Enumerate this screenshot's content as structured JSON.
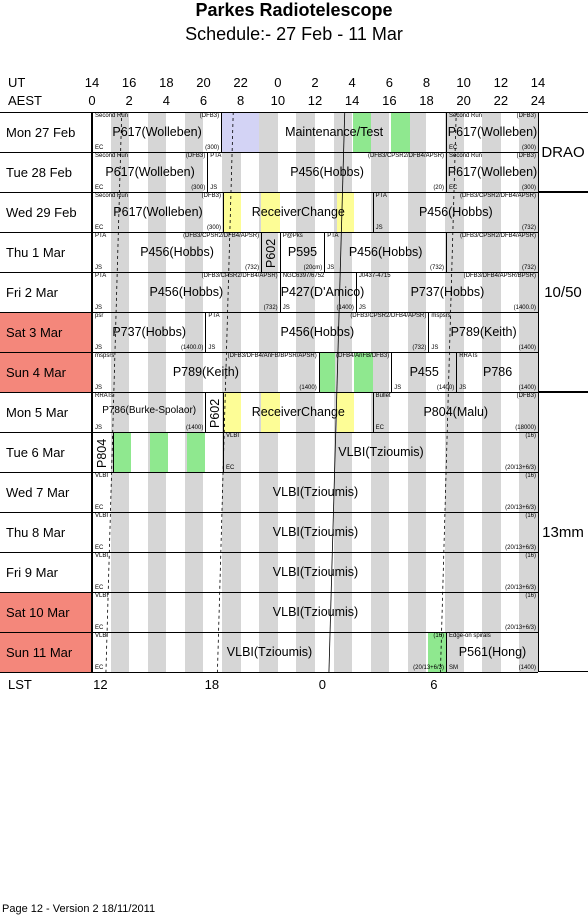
{
  "title": "Parkes Radiotelescope",
  "subtitle": "Schedule:- 27 Feb - 11 Mar",
  "axis": {
    "ut_label": "UT",
    "aest_label": "AEST",
    "lst_label": "LST",
    "ut_ticks": [
      "14",
      "16",
      "18",
      "20",
      "22",
      "0",
      "2",
      "4",
      "6",
      "8",
      "10",
      "12",
      "14"
    ],
    "aest_ticks": [
      "0",
      "2",
      "4",
      "6",
      "8",
      "10",
      "12",
      "14",
      "16",
      "18",
      "20",
      "22",
      "24"
    ],
    "lst_ticks": [
      "12",
      "18",
      "0",
      "6"
    ]
  },
  "colors": {
    "weekend": "#f4877b",
    "grey": "#d6d6d6",
    "maintenance": "#d3d3f5",
    "receiver": "#fdfd96",
    "green": "#8fe88f"
  },
  "receivers": [
    "DRAO",
    "10/50",
    "13mm"
  ],
  "days": [
    {
      "label": "Mon   27 Feb",
      "weekend": false,
      "blocks": [
        {
          "x0": 0,
          "x1": 6.95,
          "name": "P617(Wolleben)",
          "tl": "Second Run",
          "tr": "(DFB3)",
          "bl": "EC",
          "br": "(300)"
        },
        {
          "x0": 6.95,
          "x1": 19.05,
          "name": "Maintenance/Test"
        },
        {
          "x0": 19.05,
          "x1": 24,
          "name": "P617(Wolleben)",
          "tl": "Second Run",
          "tr": "(DFB3)",
          "bl": "EC",
          "br": "(300)"
        }
      ],
      "bg": [
        {
          "x0": 7,
          "x1": 9,
          "c": "maintenance"
        },
        {
          "x0": 14.05,
          "x1": 15,
          "c": "green"
        },
        {
          "x0": 16.1,
          "x1": 17.1,
          "c": "green"
        }
      ]
    },
    {
      "label": "Tue   28 Feb",
      "weekend": false,
      "blocks": [
        {
          "x0": 0,
          "x1": 6.2,
          "name": "P617(Wolleben)",
          "tl": "Second Run",
          "tr": "(DFB3)",
          "bl": "EC",
          "br": "(300)"
        },
        {
          "x0": 6.2,
          "x1": 19.05,
          "name": "P456(Hobbs)",
          "tl": "PTA",
          "tr": "(DFB3/CPSR2/DFB4/APSR)",
          "bl": "JS",
          "br": "(20)"
        },
        {
          "x0": 19.05,
          "x1": 24,
          "name": "P617(Wolleben)",
          "tl": "Second Run",
          "tr": "(DFB3)",
          "bl": "EC",
          "br": "(300)"
        }
      ],
      "bg": []
    },
    {
      "label": "Wed   29 Feb",
      "weekend": false,
      "blocks": [
        {
          "x0": 0,
          "x1": 7.05,
          "name": "P617(Wolleben)",
          "tl": "Second Run",
          "tr": "(DFB3)",
          "bl": "EC",
          "br": "(300)"
        },
        {
          "x0": 7.05,
          "x1": 15.1,
          "name": "ReceiverChange"
        },
        {
          "x0": 15.1,
          "x1": 24,
          "name": "P456(Hobbs)",
          "tl": "PTA",
          "tr": "(DFB3/CPSR2/DFB4/APSR)",
          "bl": "JS",
          "br": "(732)"
        }
      ],
      "bg": [
        {
          "x0": 7.05,
          "x1": 8,
          "c": "receiver"
        },
        {
          "x0": 9.1,
          "x1": 10.1,
          "c": "receiver"
        },
        {
          "x0": 13.2,
          "x1": 14.1,
          "c": "receiver"
        }
      ]
    },
    {
      "label": "Thu    1 Mar",
      "weekend": false,
      "blocks": [
        {
          "x0": 0,
          "x1": 9.1,
          "name": "P456(Hobbs)",
          "tl": "PTA",
          "tr": "(DFB3/CPSR2/DFB4/APSR)",
          "bl": "JS",
          "br": "(732)"
        },
        {
          "x0": 9.1,
          "x1": 10.1,
          "name": "",
          "vert": "P602"
        },
        {
          "x0": 10.1,
          "x1": 12.5,
          "name": "P595",
          "tl": "P@Pks",
          "br": "(20cm)"
        },
        {
          "x0": 12.5,
          "x1": 19.05,
          "name": "P456(Hobbs)",
          "tl": "PTA",
          "bl": "JS",
          "br": "(732)"
        },
        {
          "x0": 19.05,
          "x1": 24,
          "name": "",
          "tr": "(DFB3/CPSR2/DFB4/APSR)",
          "br": "(732)"
        }
      ],
      "bg": []
    },
    {
      "label": "Fri     2 Mar",
      "weekend": false,
      "blocks": [
        {
          "x0": 0,
          "x1": 10.1,
          "name": "P456(Hobbs)",
          "tl": "PTA",
          "tr": "(DFB3/CPSR2/DFB4/APSR)",
          "bl": "JS",
          "br": "(732)"
        },
        {
          "x0": 10.1,
          "x1": 14.2,
          "name": "P427(D'Amico)",
          "tl": "NGC6397/6752",
          "bl": "JS",
          "br": "(1400)"
        },
        {
          "x0": 14.2,
          "x1": 24,
          "name": "P737(Hobbs)",
          "tl": "J0437-4715",
          "tr": "(DFB3/DFB4/APSR/BPSR)",
          "bl": "JS",
          "br": "(1400.0)"
        }
      ],
      "bg": []
    },
    {
      "label": "Sat    3 Mar",
      "weekend": true,
      "blocks": [
        {
          "x0": 0,
          "x1": 6.1,
          "name": "P737(Hobbs)",
          "tl": "psr",
          "bl": "JS",
          "br": "(1400.0)"
        },
        {
          "x0": 6.1,
          "x1": 18.1,
          "name": "P456(Hobbs)",
          "tl": "PTA",
          "tr": "(DFB3/CPSR2/DFB4/APSR)",
          "bl": "JS",
          "br": "(732)"
        },
        {
          "x0": 18.1,
          "x1": 24,
          "name": "P789(Keith)",
          "tl": "mspsrs",
          "bl": "JS",
          "br": "(1400)"
        }
      ],
      "bg": []
    },
    {
      "label": "Sun    4 Mar",
      "weekend": true,
      "blocks": [
        {
          "x0": 0,
          "x1": 12.2,
          "name": "P789(Keith)",
          "tl": "mspsrs",
          "tr": "(DFB3/DFB4/AnFB/BPSR/APSR)",
          "bl": "JS",
          "br": "(1400)"
        },
        {
          "x0": 12.2,
          "x1": 16.1,
          "name": "",
          "tr": "(DFB4/AnFB/DFB3)"
        },
        {
          "x0": 16.1,
          "x1": 19.6,
          "name": "P455",
          "bl": "JS",
          "br": "(1400)"
        },
        {
          "x0": 19.6,
          "x1": 24,
          "name": "P786",
          "tl": "RRATs",
          "bl": "JS",
          "br": "(1400)"
        }
      ],
      "bg": [
        {
          "x0": 12.25,
          "x1": 13.1,
          "c": "green"
        },
        {
          "x0": 14.1,
          "x1": 15.1,
          "c": "green"
        }
      ]
    },
    {
      "label": "Mon    5 Mar",
      "weekend": false,
      "blocks": [
        {
          "x0": 0,
          "x1": 6.1,
          "name": "P786(Burke-Spolaor)",
          "tl": "RRATs",
          "bl": "JS",
          "br": "(1400)",
          "small": true
        },
        {
          "x0": 6.1,
          "x1": 7.05,
          "name": "",
          "vert": "P602"
        },
        {
          "x0": 7.05,
          "x1": 15.1,
          "name": "ReceiverChange"
        },
        {
          "x0": 15.1,
          "x1": 24,
          "name": "P804(Malu)",
          "tl": "Bullet",
          "tr": "(DFB3)",
          "bl": "EC",
          "br": "(18000)"
        }
      ],
      "bg": [
        {
          "x0": 7.05,
          "x1": 8,
          "c": "receiver"
        },
        {
          "x0": 9.1,
          "x1": 10.1,
          "c": "receiver"
        },
        {
          "x0": 13.2,
          "x1": 14.1,
          "c": "receiver"
        }
      ]
    },
    {
      "label": "Tue    6 Mar",
      "weekend": false,
      "blocks": [
        {
          "x0": 0,
          "x1": 1.15,
          "name": "",
          "vert": "P804"
        },
        {
          "x0": 1.15,
          "x1": 7.05,
          "name": ""
        },
        {
          "x0": 7.05,
          "x1": 24,
          "name": "VLBI(Tzioumis)",
          "tl": "VLBI",
          "tr": "(16)",
          "bl": "EC",
          "br": "(20/13+6/3)"
        }
      ],
      "bg": [
        {
          "x0": 1.15,
          "x1": 2.1,
          "c": "green"
        },
        {
          "x0": 3.1,
          "x1": 4.1,
          "c": "green"
        },
        {
          "x0": 5.1,
          "x1": 6.1,
          "c": "green"
        }
      ]
    },
    {
      "label": "Wed    7 Mar",
      "weekend": false,
      "blocks": [
        {
          "x0": 0,
          "x1": 24,
          "name": "VLBI(Tzioumis)",
          "tl": "VLBI",
          "tr": "(16)",
          "bl": "EC",
          "br": "(20/13+6/3)"
        }
      ],
      "bg": []
    },
    {
      "label": "Thu    8 Mar",
      "weekend": false,
      "blocks": [
        {
          "x0": 0,
          "x1": 24,
          "name": "VLBI(Tzioumis)",
          "tl": "VLBI",
          "tr": "(16)",
          "bl": "EC",
          "br": "(20/13+6/3)"
        }
      ],
      "bg": []
    },
    {
      "label": "Fri     9 Mar",
      "weekend": false,
      "blocks": [
        {
          "x0": 0,
          "x1": 24,
          "name": "VLBI(Tzioumis)",
          "tl": "VLBI",
          "tr": "(16)",
          "bl": "EC",
          "br": "(20/13+6/3)"
        }
      ],
      "bg": []
    },
    {
      "label": "Sat   10 Mar",
      "weekend": true,
      "blocks": [
        {
          "x0": 0,
          "x1": 24,
          "name": "VLBI(Tzioumis)",
          "tl": "VLBI",
          "tr": "(16)",
          "bl": "EC",
          "br": "(20/13+6/3)"
        }
      ],
      "bg": []
    },
    {
      "label": "Sun   11 Mar",
      "weekend": true,
      "blocks": [
        {
          "x0": 0,
          "x1": 19.05,
          "name": "VLBI(Tzioumis)",
          "tl": "VLBI",
          "tr": "(16)",
          "bl": "EC",
          "br": "(20/13+6/3)"
        },
        {
          "x0": 19.05,
          "x1": 24,
          "name": "P561(Hong)",
          "tl": "Edge-on spirals",
          "bl": "SM",
          "br": "(1400)"
        }
      ],
      "bg": [
        {
          "x0": 18.1,
          "x1": 19.05,
          "c": "green"
        }
      ]
    }
  ],
  "footer": "Page 12 - Version 2  18/11/2011"
}
